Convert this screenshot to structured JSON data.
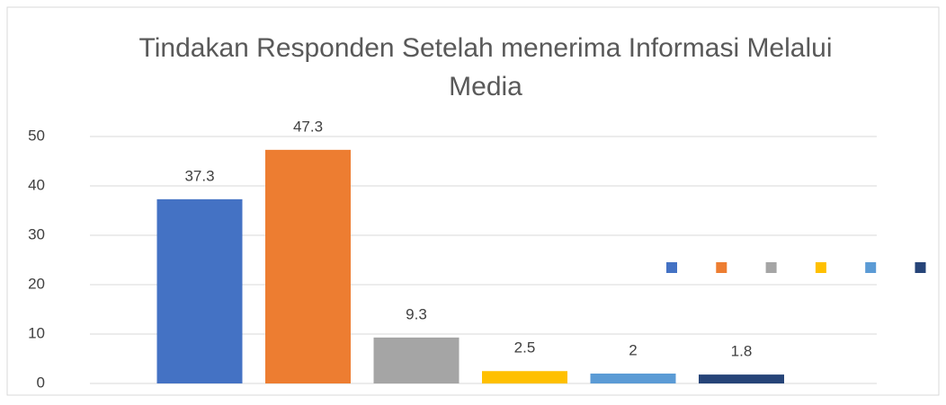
{
  "chart_data": {
    "type": "bar",
    "title": "Tindakan Responden Setelah menerima Informasi Melalui Media",
    "categories": [
      null,
      null,
      null,
      null,
      null,
      null
    ],
    "values": [
      37.3,
      47.3,
      9.3,
      2.5,
      2,
      1.8
    ],
    "colors": [
      "#4472c4",
      "#ed7d31",
      "#a5a5a5",
      "#ffc000",
      "#5b9bd5",
      "#264478"
    ],
    "ylim": [
      0,
      50
    ],
    "yticks": [
      0,
      10,
      20,
      30,
      40,
      50
    ],
    "grid": true
  }
}
